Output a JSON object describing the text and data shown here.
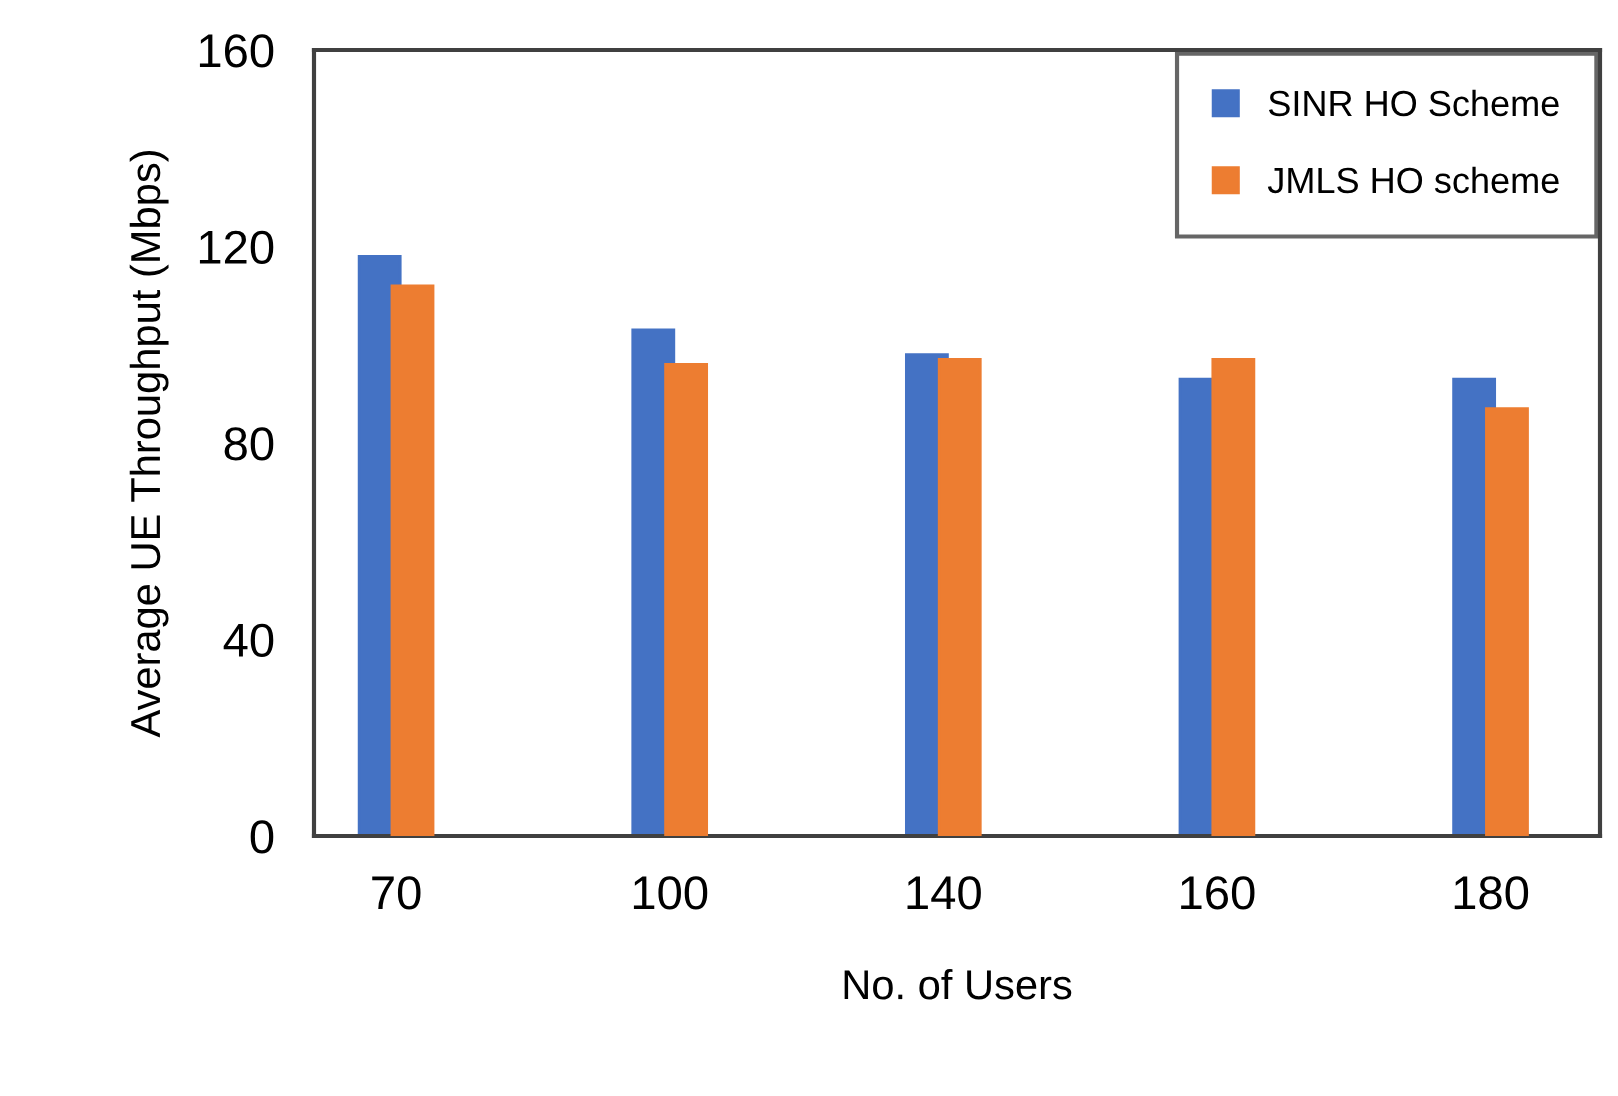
{
  "chart_data": {
    "type": "bar",
    "xlabel": "No. of Users",
    "ylabel": "Average UE Throughput (Mbps)",
    "categories": [
      "70",
      "100",
      "140",
      "160",
      "180"
    ],
    "series": [
      {
        "name": "SINR HO Scheme",
        "color": "#4472c4",
        "values": [
          118,
          103,
          98,
          93,
          93
        ]
      },
      {
        "name": "JMLS HO scheme",
        "color": "#ed7d31",
        "values": [
          112,
          96,
          97,
          97,
          87
        ]
      }
    ],
    "ylim": [
      0,
      160
    ],
    "yticks": [
      0,
      40,
      80,
      120,
      160
    ],
    "grid": false,
    "legend": "top right"
  }
}
